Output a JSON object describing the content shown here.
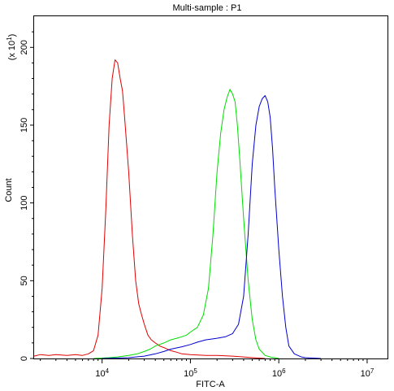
{
  "chart_data": {
    "type": "line",
    "title": "Multi-sample : P1",
    "xlabel": "FITC-A",
    "ylabel": "Count",
    "y_multiplier": "(x 10",
    "y_multiplier_exp": "1",
    "y_multiplier_close": ")",
    "x_scale": "log",
    "xlim": [
      1700,
      17000000
    ],
    "ylim": [
      0,
      220
    ],
    "x_ticks": [
      {
        "value": 10000,
        "base": "10",
        "exp": "4"
      },
      {
        "value": 100000,
        "base": "10",
        "exp": "5"
      },
      {
        "value": 1000000,
        "base": "10",
        "exp": "6"
      },
      {
        "value": 10000000,
        "base": "10",
        "exp": "7"
      }
    ],
    "y_ticks": [
      {
        "value": 0,
        "label": "0"
      },
      {
        "value": 50,
        "label": "50"
      },
      {
        "value": 100,
        "label": "100"
      },
      {
        "value": 150,
        "label": "150"
      },
      {
        "value": 200,
        "label": "200"
      }
    ],
    "grid": false,
    "legend": "none",
    "series": [
      {
        "color": "#e00000",
        "points": [
          [
            1700,
            1.5
          ],
          [
            2000,
            2.5
          ],
          [
            2500,
            2
          ],
          [
            3000,
            2.5
          ],
          [
            4000,
            2
          ],
          [
            5000,
            2.5
          ],
          [
            6000,
            2
          ],
          [
            7000,
            3
          ],
          [
            8000,
            5
          ],
          [
            9000,
            15
          ],
          [
            10000,
            45
          ],
          [
            11000,
            95
          ],
          [
            12000,
            150
          ],
          [
            13000,
            180
          ],
          [
            14000,
            192
          ],
          [
            15000,
            190
          ],
          [
            16000,
            180
          ],
          [
            17000,
            172
          ],
          [
            18000,
            155
          ],
          [
            20000,
            120
          ],
          [
            22000,
            80
          ],
          [
            24000,
            50
          ],
          [
            26000,
            35
          ],
          [
            28000,
            28
          ],
          [
            30000,
            22
          ],
          [
            33000,
            15
          ],
          [
            36000,
            12
          ],
          [
            40000,
            10
          ],
          [
            45000,
            8
          ],
          [
            50000,
            7
          ],
          [
            60000,
            5
          ],
          [
            70000,
            4
          ],
          [
            80000,
            3
          ],
          [
            100000,
            2.5
          ],
          [
            150000,
            2
          ],
          [
            200000,
            2
          ],
          [
            300000,
            1.5
          ],
          [
            400000,
            1
          ],
          [
            500000,
            0.5
          ],
          [
            700000,
            0
          ]
        ]
      },
      {
        "color": "#00dd00",
        "points": [
          [
            8000,
            0
          ],
          [
            12000,
            0.5
          ],
          [
            15000,
            1
          ],
          [
            20000,
            2
          ],
          [
            25000,
            3
          ],
          [
            30000,
            4.5
          ],
          [
            35000,
            6
          ],
          [
            40000,
            8
          ],
          [
            50000,
            10
          ],
          [
            60000,
            12
          ],
          [
            70000,
            13
          ],
          [
            80000,
            14
          ],
          [
            90000,
            15
          ],
          [
            100000,
            17
          ],
          [
            120000,
            20
          ],
          [
            140000,
            28
          ],
          [
            160000,
            45
          ],
          [
            180000,
            80
          ],
          [
            200000,
            120
          ],
          [
            220000,
            145
          ],
          [
            240000,
            160
          ],
          [
            260000,
            168
          ],
          [
            280000,
            173
          ],
          [
            300000,
            170
          ],
          [
            320000,
            165
          ],
          [
            340000,
            150
          ],
          [
            360000,
            130
          ],
          [
            400000,
            90
          ],
          [
            450000,
            50
          ],
          [
            500000,
            25
          ],
          [
            550000,
            12
          ],
          [
            600000,
            6
          ],
          [
            700000,
            2
          ],
          [
            800000,
            1
          ],
          [
            1000000,
            0
          ]
        ]
      },
      {
        "color": "#0000cc",
        "points": [
          [
            10000,
            0
          ],
          [
            20000,
            0.5
          ],
          [
            30000,
            1.5
          ],
          [
            40000,
            3
          ],
          [
            50000,
            4.5
          ],
          [
            60000,
            6
          ],
          [
            80000,
            7.5
          ],
          [
            100000,
            9
          ],
          [
            120000,
            10.5
          ],
          [
            150000,
            12
          ],
          [
            200000,
            13
          ],
          [
            250000,
            14
          ],
          [
            300000,
            16
          ],
          [
            350000,
            22
          ],
          [
            400000,
            40
          ],
          [
            450000,
            80
          ],
          [
            500000,
            125
          ],
          [
            550000,
            150
          ],
          [
            600000,
            162
          ],
          [
            650000,
            167
          ],
          [
            700000,
            169
          ],
          [
            750000,
            165
          ],
          [
            800000,
            155
          ],
          [
            850000,
            135
          ],
          [
            900000,
            110
          ],
          [
            1000000,
            70
          ],
          [
            1100000,
            40
          ],
          [
            1200000,
            20
          ],
          [
            1300000,
            8
          ],
          [
            1500000,
            3
          ],
          [
            1800000,
            1
          ],
          [
            2000000,
            0.5
          ],
          [
            3000000,
            0
          ]
        ]
      }
    ]
  }
}
